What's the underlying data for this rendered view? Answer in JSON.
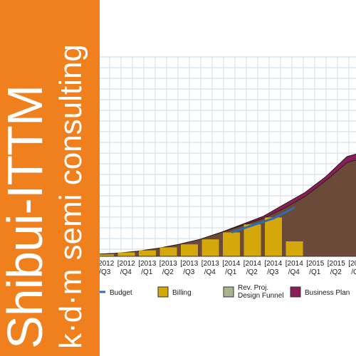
{
  "banner": {
    "title": "Shibui-ITTM",
    "subtitle": "k·d·m semi consulting",
    "background_color": "#f07f1e"
  },
  "chart_data": {
    "type": "area",
    "categories": [
      [
        "2012",
        "/Q3"
      ],
      [
        "2012",
        "/Q4"
      ],
      [
        "2013",
        "/Q1"
      ],
      [
        "2013",
        "/Q2"
      ],
      [
        "2013",
        "/Q3"
      ],
      [
        "2013",
        "/Q4"
      ],
      [
        "2014",
        "/Q1"
      ],
      [
        "2014",
        "/Q2"
      ],
      [
        "2014",
        "/Q3"
      ],
      [
        "2014",
        "/Q4"
      ],
      [
        "2015",
        "/Q1"
      ],
      [
        "2015",
        "/Q2"
      ],
      [
        "20",
        "/Q"
      ]
    ],
    "ylim": [
      0,
      100
    ],
    "grid": true,
    "legend_placement": "bottom",
    "series": [
      {
        "name": "Business Plan",
        "kind": "area",
        "color": "#8b1e5a",
        "values": [
          1,
          1.5,
          2.5,
          4,
          6,
          8.5,
          12,
          16,
          20,
          26,
          32,
          40,
          50
        ]
      },
      {
        "name": "Rev. Proj. Design Funnel",
        "kind": "area",
        "color": "#6b4a3a",
        "values": [
          1,
          1.5,
          2.5,
          4,
          6,
          8.5,
          12,
          15.5,
          19,
          24,
          30,
          38,
          47
        ]
      },
      {
        "name": "Budget",
        "kind": "line",
        "color": "#2e6db0",
        "values": [
          null,
          null,
          null,
          null,
          null,
          null,
          12,
          15.5,
          19,
          24.5,
          null,
          null,
          null
        ]
      },
      {
        "name": "Billing",
        "kind": "bar",
        "color": "#d4a80a",
        "values": [
          1,
          2,
          3,
          4.5,
          6,
          8.5,
          12,
          16,
          19.5,
          7.5,
          null,
          null,
          null
        ]
      }
    ],
    "legend": [
      {
        "name": "Budget",
        "swatch": "line",
        "color": "#2e6db0"
      },
      {
        "name": "Billing",
        "swatch": "box",
        "color": "#d4a80a"
      },
      {
        "name": "Rev. Proj. Design Funnel",
        "label_lines": [
          "Rev. Proj.",
          "Design Funnel"
        ],
        "swatch": "box",
        "color": "#a8b48c"
      },
      {
        "name": "Business Plan",
        "swatch": "box",
        "color": "#8b1e5a"
      }
    ]
  }
}
